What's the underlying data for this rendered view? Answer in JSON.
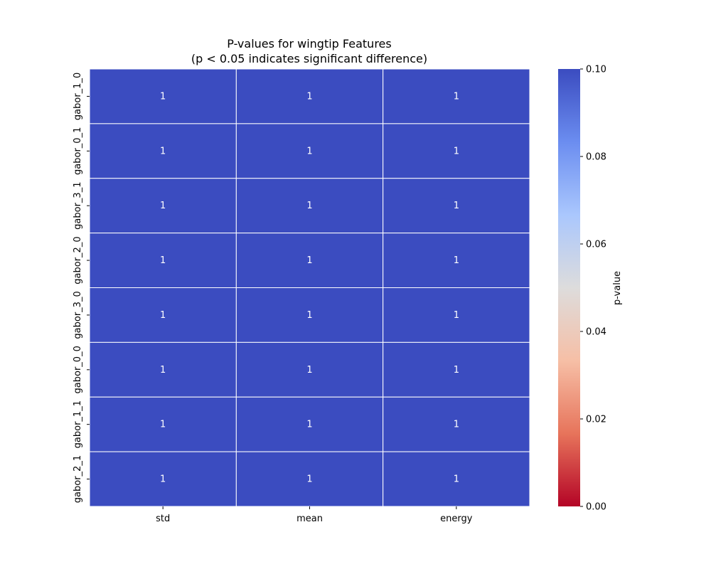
{
  "chart_data": {
    "type": "heatmap",
    "title": "P-values for wingtip Features",
    "subtitle": "(p < 0.05 indicates significant difference)",
    "xlabel": "",
    "ylabel": "",
    "x_categories": [
      "std",
      "mean",
      "energy"
    ],
    "y_categories": [
      "gabor_1_0",
      "gabor_0_1",
      "gabor_3_1",
      "gabor_2_0",
      "gabor_3_0",
      "gabor_0_0",
      "gabor_1_1",
      "gabor_2_1"
    ],
    "values": [
      [
        1,
        1,
        1
      ],
      [
        1,
        1,
        1
      ],
      [
        1,
        1,
        1
      ],
      [
        1,
        1,
        1
      ],
      [
        1,
        1,
        1
      ],
      [
        1,
        1,
        1
      ],
      [
        1,
        1,
        1
      ],
      [
        1,
        1,
        1
      ]
    ],
    "annotations_shown": true,
    "colormap": "coolwarm_r",
    "colorbar": {
      "label": "p-value",
      "vmin": 0,
      "vmax": 0.1,
      "ticks": [
        "0.00",
        "0.02",
        "0.04",
        "0.06",
        "0.08",
        "0.10"
      ],
      "colors": [
        "#b40426",
        "#e7745b",
        "#f6bfa6",
        "#dddcdc",
        "#aac7fd",
        "#6b8df0",
        "#3b4cc0"
      ]
    },
    "cell_color": "#3b4cc0",
    "cell_border_color": "#ffffff",
    "annotation_color": "#ffffff"
  }
}
